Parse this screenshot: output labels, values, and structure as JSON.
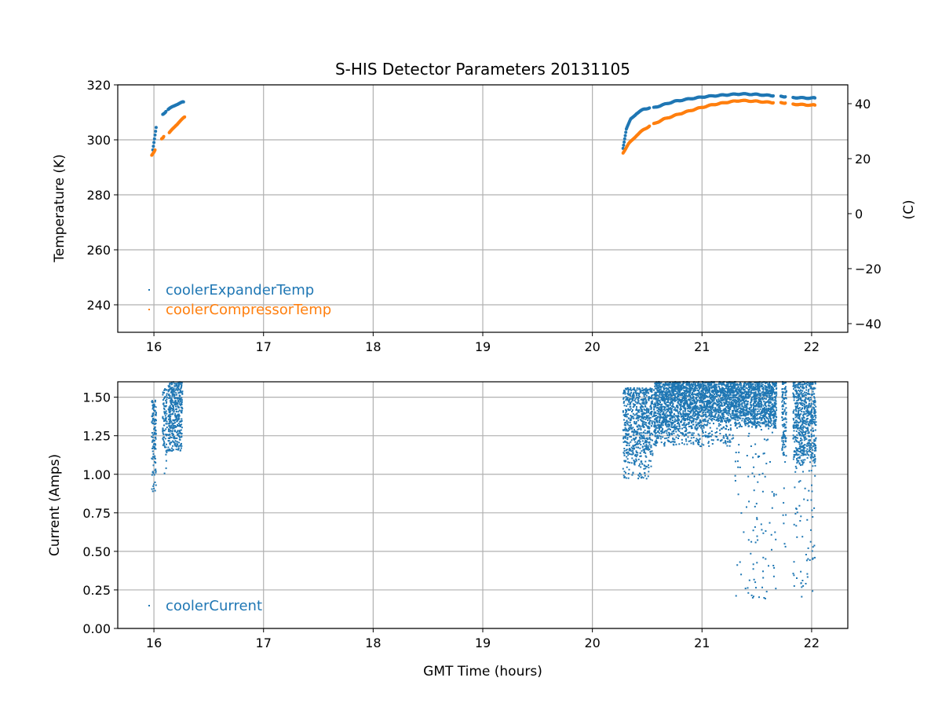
{
  "chart_data": [
    {
      "type": "scatter",
      "title": "S-HIS Detector Parameters 20131105",
      "xlabel": "",
      "ylabel": "Temperature (K)",
      "ylabel_right": "(C)",
      "xlim": [
        15.67,
        22.33
      ],
      "ylim": [
        230,
        320
      ],
      "ylim_right_offset_kelvin_to_celsius": -273.15,
      "xticks": [
        "16",
        "17",
        "18",
        "19",
        "20",
        "21",
        "22"
      ],
      "xtick_values": [
        16,
        17,
        18,
        19,
        20,
        21,
        22
      ],
      "yticks": [
        "240",
        "260",
        "280",
        "300",
        "320"
      ],
      "ytick_values": [
        240,
        260,
        280,
        300,
        320
      ],
      "yticks_right": [
        "−40",
        "−20",
        "0",
        "20",
        "40"
      ],
      "ytick_right_values": [
        -40,
        -20,
        0,
        20,
        40
      ],
      "grid": true,
      "legend": "lower-left",
      "series": [
        {
          "name": "coolerExpanderTemp",
          "color": "#1f77b4",
          "segments": [
            [
              [
                15.99,
                296.5
              ],
              [
                16.02,
                304.5
              ]
            ],
            [
              [
                16.08,
                309.3
              ],
              [
                16.11,
                310.3
              ]
            ],
            [
              [
                16.13,
                311.0
              ],
              [
                16.2,
                312.8
              ],
              [
                16.27,
                313.8
              ]
            ],
            [
              [
                20.28,
                297.0
              ],
              [
                20.31,
                304.0
              ],
              [
                20.35,
                307.5
              ],
              [
                20.4,
                309.5
              ],
              [
                20.47,
                311.2
              ],
              [
                20.52,
                311.6
              ]
            ],
            [
              [
                20.56,
                311.7
              ],
              [
                20.65,
                312.8
              ],
              [
                20.75,
                314.0
              ],
              [
                20.9,
                315.0
              ],
              [
                21.05,
                315.8
              ],
              [
                21.2,
                316.3
              ],
              [
                21.35,
                316.7
              ],
              [
                21.5,
                316.5
              ],
              [
                21.65,
                316.0
              ]
            ],
            [
              [
                21.72,
                315.8
              ],
              [
                21.76,
                315.7
              ]
            ],
            [
              [
                21.83,
                315.4
              ],
              [
                21.95,
                315.2
              ],
              [
                22.03,
                315.2
              ]
            ]
          ]
        },
        {
          "name": "coolerCompressorTemp",
          "color": "#ff7f0e",
          "segments": [
            [
              [
                15.98,
                294.5
              ],
              [
                16.01,
                296.3
              ]
            ],
            [
              [
                16.07,
                300.3
              ],
              [
                16.09,
                301.2
              ]
            ],
            [
              [
                16.14,
                302.5
              ],
              [
                16.2,
                305.3
              ],
              [
                16.28,
                308.3
              ]
            ],
            [
              [
                20.28,
                295.3
              ],
              [
                20.33,
                298.5
              ],
              [
                20.4,
                301.5
              ],
              [
                20.47,
                303.8
              ],
              [
                20.52,
                305.0
              ]
            ],
            [
              [
                20.56,
                305.8
              ],
              [
                20.65,
                307.5
              ],
              [
                20.8,
                309.5
              ],
              [
                20.95,
                311.3
              ],
              [
                21.1,
                312.8
              ],
              [
                21.25,
                313.8
              ],
              [
                21.35,
                314.3
              ],
              [
                21.5,
                314.0
              ],
              [
                21.65,
                313.5
              ]
            ],
            [
              [
                21.72,
                313.5
              ],
              [
                21.76,
                313.4
              ]
            ],
            [
              [
                21.83,
                313.0
              ],
              [
                21.95,
                312.7
              ],
              [
                22.03,
                312.6
              ]
            ]
          ]
        }
      ]
    },
    {
      "type": "scatter",
      "title": "",
      "xlabel": "GMT Time (hours)",
      "ylabel": "Current (Amps)",
      "xlim": [
        15.67,
        22.33
      ],
      "ylim": [
        0.0,
        1.6
      ],
      "xticks": [
        "16",
        "17",
        "18",
        "19",
        "20",
        "21",
        "22"
      ],
      "xtick_values": [
        16,
        17,
        18,
        19,
        20,
        21,
        22
      ],
      "yticks": [
        "0.00",
        "0.25",
        "0.50",
        "0.75",
        "1.00",
        "1.25",
        "1.50"
      ],
      "ytick_values": [
        0,
        0.25,
        0.5,
        0.75,
        1.0,
        1.25,
        1.5
      ],
      "grid": true,
      "legend": "lower-left",
      "series": [
        {
          "name": "coolerCurrent",
          "color": "#1f77b4",
          "envelope_note": "dense scatter described by bands: time range, lower bound at start/end, upper bound, outlier floor",
          "bands": [
            {
              "t": [
                15.98,
                16.02
              ],
              "lo": [
                0.88,
                1.0
              ],
              "hi": 1.48,
              "outlier_floor": 0.88,
              "count": 120
            },
            {
              "t": [
                16.08,
                16.12
              ],
              "lo": [
                1.1,
                1.15
              ],
              "hi": 1.56,
              "outlier_floor": 1.0,
              "count": 90
            },
            {
              "t": [
                16.13,
                16.26
              ],
              "lo": [
                1.2,
                1.22
              ],
              "hi": 1.6,
              "outlier_floor": 1.15,
              "count": 400
            },
            {
              "t": [
                20.28,
                20.55
              ],
              "lo": [
                1.0,
                1.12
              ],
              "hi": 1.56,
              "outlier_floor": 0.97,
              "count": 700
            },
            {
              "t": [
                20.56,
                21.3
              ],
              "lo": [
                1.2,
                1.35
              ],
              "hi": 1.6,
              "outlier_floor": 1.18,
              "count": 2200
            },
            {
              "t": [
                21.3,
                21.68
              ],
              "lo": [
                1.3,
                1.3
              ],
              "hi": 1.6,
              "outlier_floor": 0.18,
              "count": 1100
            },
            {
              "t": [
                21.73,
                21.77
              ],
              "lo": [
                1.1,
                1.1
              ],
              "hi": 1.6,
              "outlier_floor": 0.45,
              "count": 120
            },
            {
              "t": [
                21.83,
                22.04
              ],
              "lo": [
                1.05,
                1.05
              ],
              "hi": 1.6,
              "outlier_floor": 0.17,
              "count": 700
            }
          ]
        }
      ]
    }
  ]
}
